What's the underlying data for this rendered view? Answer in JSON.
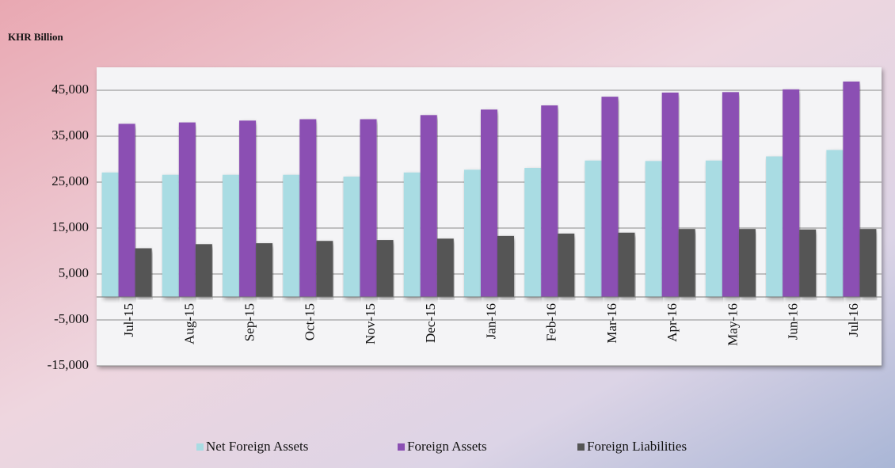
{
  "chart_data": {
    "type": "bar",
    "y_axis_label": "KHR Billion",
    "categories": [
      "Jul-15",
      "Aug-15",
      "Sep-15",
      "Oct-15",
      "Nov-15",
      "Dec-15",
      "Jan-16",
      "Feb-16",
      "Mar-16",
      "Apr-16",
      "May-16",
      "Jun-16",
      "Jul-16"
    ],
    "series": [
      {
        "name": "Net Foreign Assets",
        "color": "#a9dce3",
        "values": [
          27100,
          26600,
          26600,
          26600,
          26200,
          27100,
          27700,
          28100,
          29700,
          29600,
          29700,
          30600,
          32000
        ]
      },
      {
        "name": "Foreign Assets",
        "color": "#8b4fb3",
        "values": [
          37700,
          38000,
          38400,
          38700,
          38700,
          39600,
          40800,
          41700,
          43600,
          44500,
          44600,
          45200,
          46900
        ]
      },
      {
        "name": "Foreign Liabilities",
        "color": "#555555",
        "values": [
          10600,
          11500,
          11700,
          12200,
          12400,
          12700,
          13300,
          13800,
          14000,
          14800,
          14800,
          14700,
          14800
        ]
      }
    ],
    "ylim": [
      -15000,
      50000
    ],
    "yticks": [
      {
        "value": -15000,
        "label": "-15,000"
      },
      {
        "value": -5000,
        "label": "-5,000"
      },
      {
        "value": 5000,
        "label": "5,000"
      },
      {
        "value": 15000,
        "label": "15,000"
      },
      {
        "value": 25000,
        "label": "25,000"
      },
      {
        "value": 35000,
        "label": "35,000"
      },
      {
        "value": 45000,
        "label": "45,000"
      }
    ],
    "grid": true,
    "legend": "bottom"
  }
}
